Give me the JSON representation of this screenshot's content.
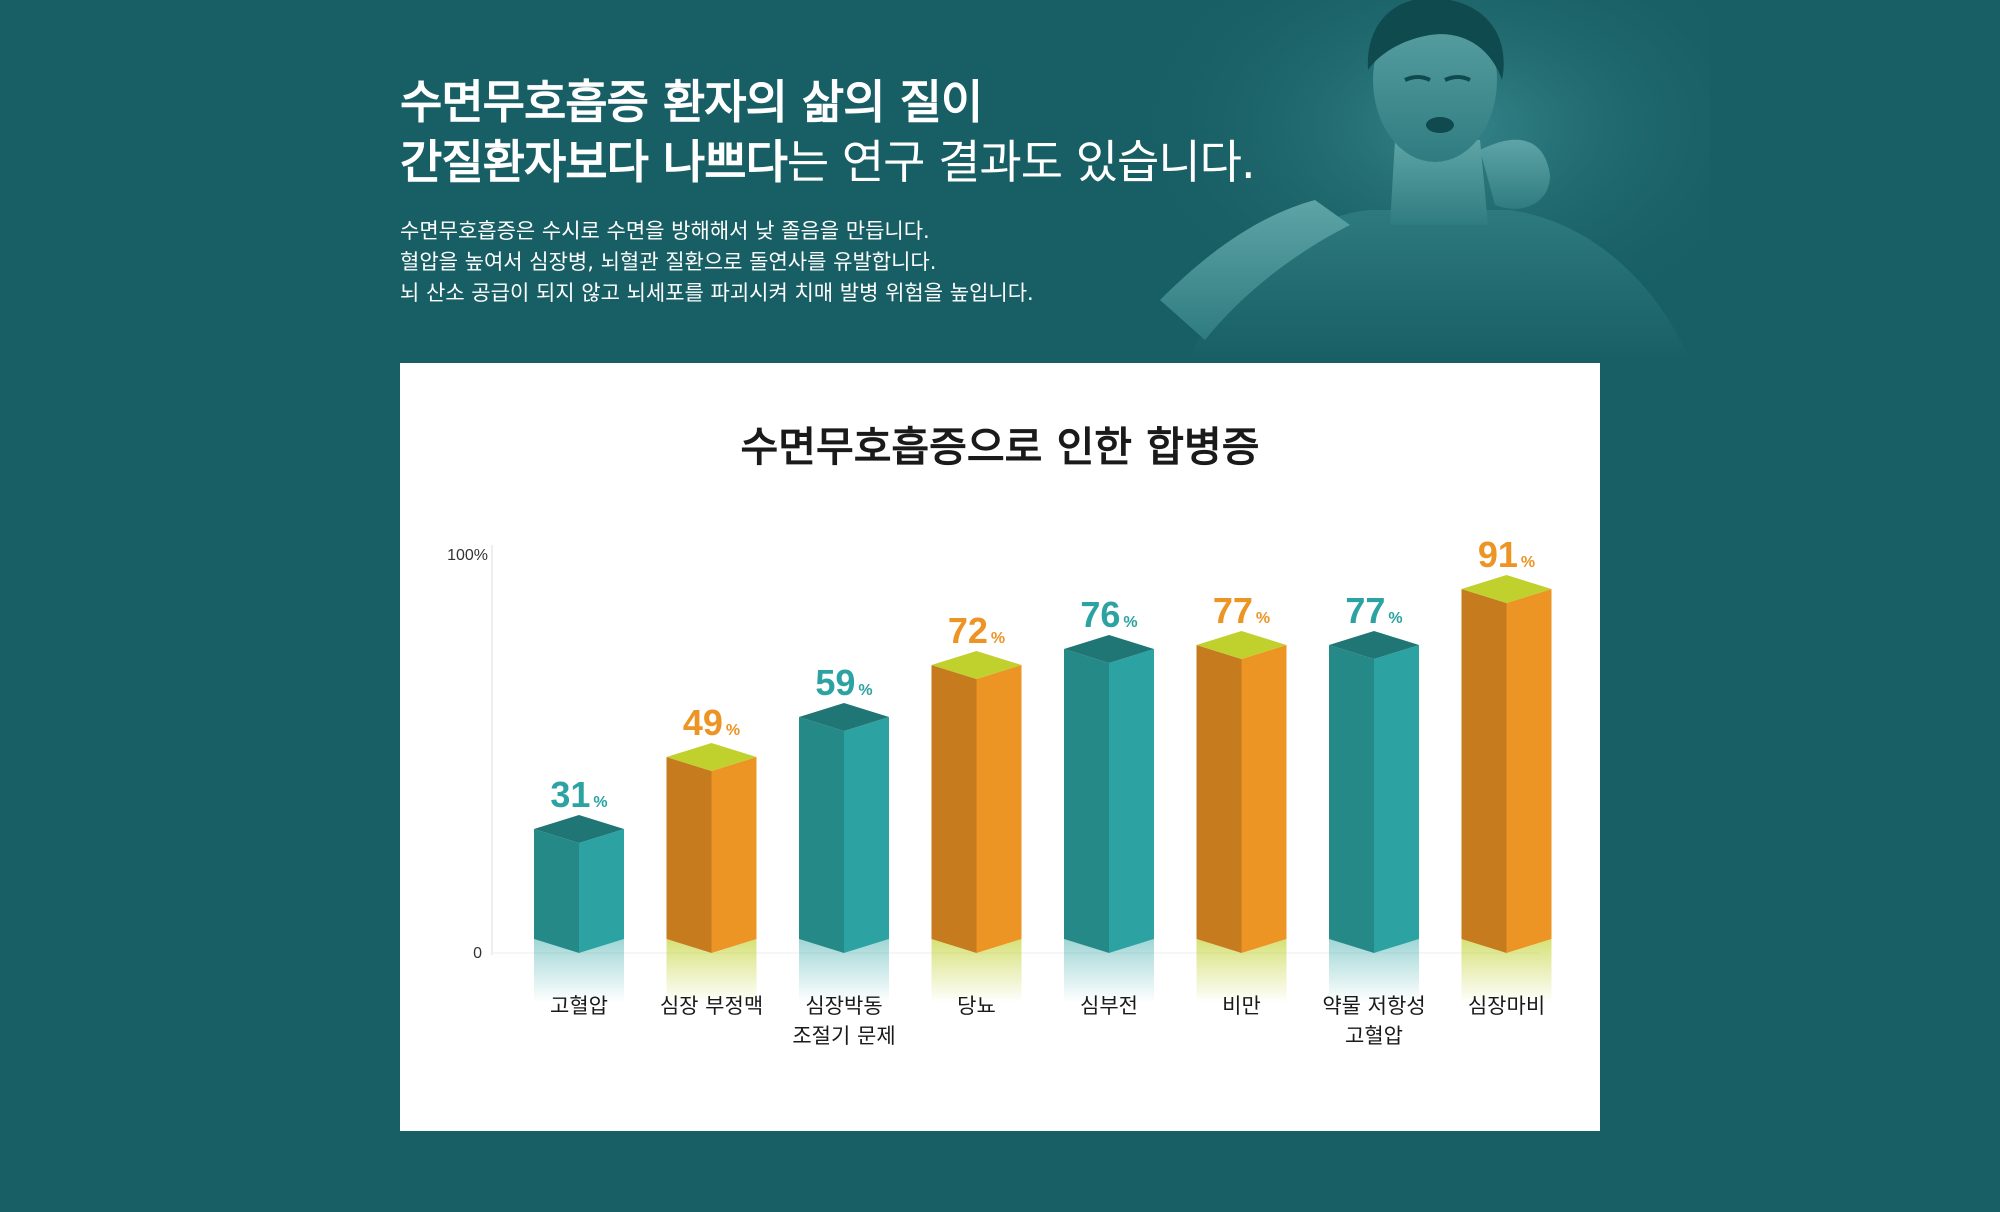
{
  "header": {
    "line1": "수면무호흡증 환자의 삶의 질이",
    "line2_bold": "간질환자보다 나쁘다",
    "line2_light": "는 연구 결과도 있습니다."
  },
  "description": [
    "수면무호흡증은 수시로 수면을 방해해서 낮 졸음을 만듭니다.",
    "혈압을 높여서 심장병, 뇌혈관 질환으로 돌연사를 유발합니다.",
    "뇌 산소 공급이 되지 않고 뇌세포를 파괴시켜 치매 발병 위험을 높입니다."
  ],
  "colors": {
    "background": "#185f65",
    "teal": "#2ca3a2",
    "orange": "#ec9424",
    "top_green": "#c0d12e"
  },
  "chart_data": {
    "type": "bar",
    "title": "수면무호흡증으로 인한 합병증",
    "ylim": [
      0,
      100
    ],
    "y_ticks": [
      "0",
      "100%"
    ],
    "unit": "%",
    "categories": [
      [
        "고혈압"
      ],
      [
        "심장 부정맥"
      ],
      [
        "심장박동",
        "조절기 문제"
      ],
      [
        "당뇨"
      ],
      [
        "심부전"
      ],
      [
        "비만"
      ],
      [
        "약물 저항성",
        "고혈압"
      ],
      [
        "심장마비"
      ]
    ],
    "values": [
      31,
      49,
      59,
      72,
      76,
      77,
      77,
      91
    ],
    "bar_colors": [
      "teal",
      "orange",
      "teal",
      "orange",
      "teal",
      "orange",
      "teal",
      "orange"
    ]
  }
}
